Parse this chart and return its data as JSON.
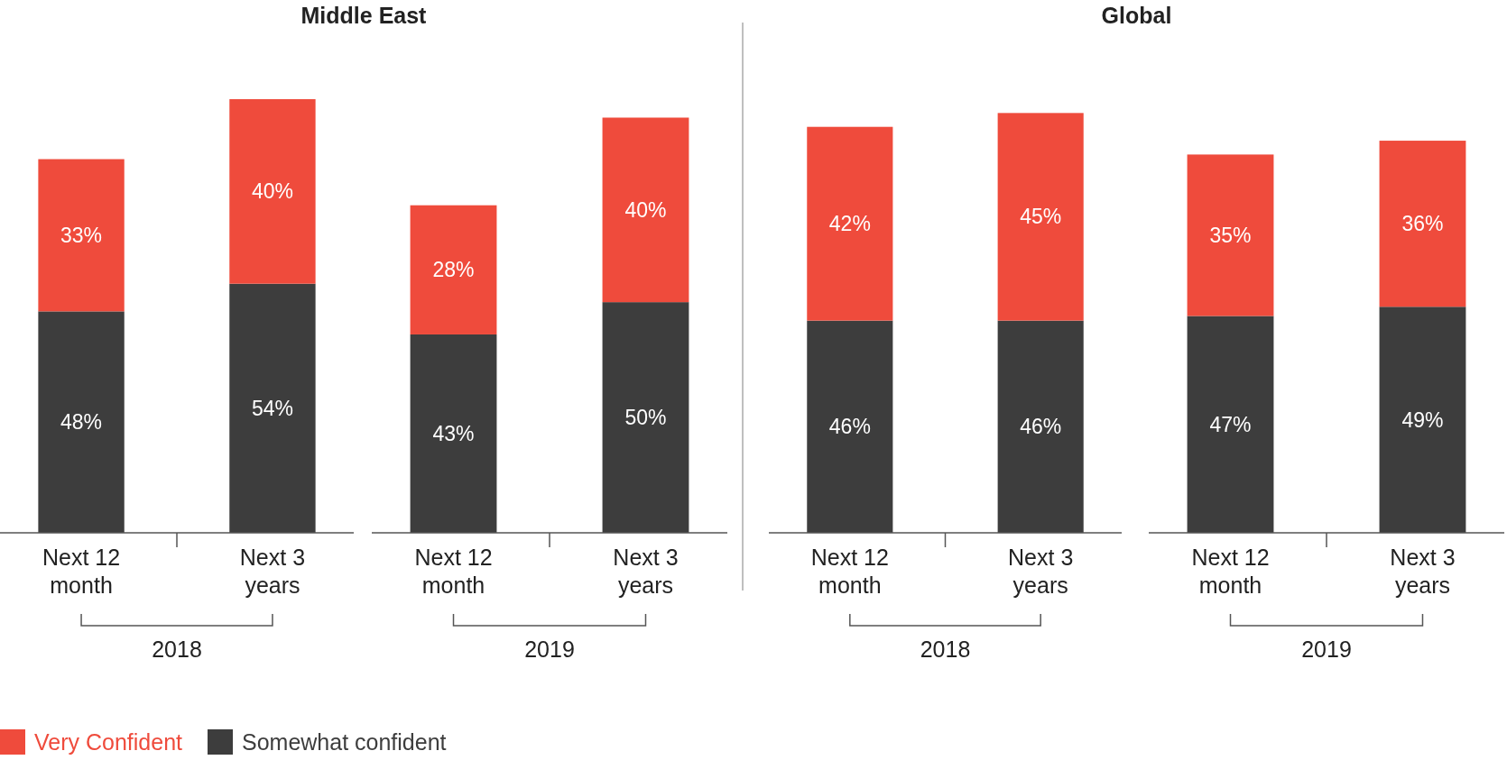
{
  "chart_data": [
    {
      "type": "bar",
      "stacked": true,
      "title": "Middle East",
      "xlabel": "2018",
      "categories": [
        "Next 12 month",
        "Next 3 years"
      ],
      "legend": "bottom",
      "series": [
        {
          "name": "Somewhat confident",
          "color": "#3d3d3d",
          "values": [
            48,
            54
          ],
          "value_labels": [
            "48%",
            "54%"
          ]
        },
        {
          "name": "Very Confident",
          "color": "#ef4b3c",
          "values": [
            33,
            40
          ],
          "value_labels": [
            "33%",
            "40%"
          ]
        }
      ]
    },
    {
      "type": "bar",
      "stacked": true,
      "xlabel": "2019",
      "categories": [
        "Next 12 month",
        "Next 3 years"
      ],
      "series": [
        {
          "color": "#3d3d3d",
          "values": [
            43,
            50
          ],
          "value_labels": [
            "43%",
            "50%"
          ]
        },
        {
          "color": "#ef4b3c",
          "values": [
            28,
            40
          ],
          "value_labels": [
            "28%",
            "40%"
          ]
        }
      ]
    },
    {
      "type": "bar",
      "stacked": true,
      "title": "Global",
      "xlabel": "2018",
      "categories": [
        "Next 12 month",
        "Next 3 years"
      ],
      "series": [
        {
          "color": "#3d3d3d",
          "values": [
            46,
            46
          ],
          "value_labels": [
            "46%",
            "46%"
          ]
        },
        {
          "color": "#ef4b3c",
          "values": [
            42,
            45
          ],
          "value_labels": [
            "42%",
            "45%"
          ]
        }
      ]
    },
    {
      "type": "bar",
      "stacked": true,
      "xlabel": "2019",
      "categories": [
        "Next 12 month",
        "Next 3 years"
      ],
      "series": [
        {
          "color": "#3d3d3d",
          "values": [
            47,
            49
          ],
          "value_labels": [
            "47%",
            "49%"
          ]
        },
        {
          "color": "#ef4b3c",
          "values": [
            35,
            36
          ],
          "value_labels": [
            "35%",
            "36%"
          ]
        }
      ]
    }
  ]
}
